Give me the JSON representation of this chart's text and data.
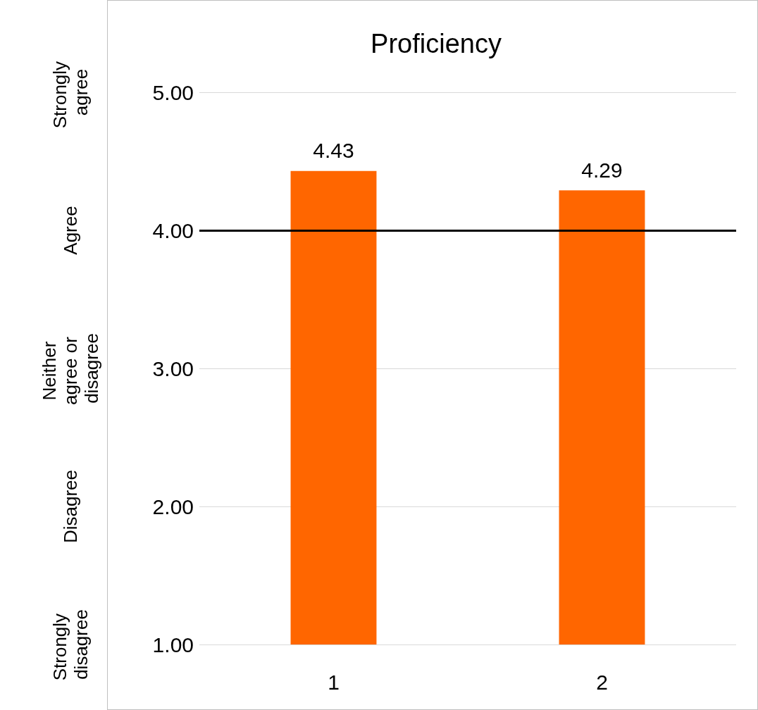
{
  "chart_data": {
    "type": "bar",
    "title": "Proficiency",
    "categories": [
      "1",
      "2"
    ],
    "values": [
      4.43,
      4.29
    ],
    "color": "#ff6600",
    "data_labels": true,
    "ylim": [
      1,
      5
    ],
    "yticks": [
      {
        "value": 1,
        "label": "1.00"
      },
      {
        "value": 2,
        "label": "2.00"
      },
      {
        "value": 3,
        "label": "3.00"
      },
      {
        "value": 4,
        "label": "4.00"
      },
      {
        "value": 5,
        "label": "5.00"
      }
    ],
    "annotations": [
      "Strongly agree",
      "Agree",
      "Neither agree or disagree",
      "Disagree",
      "Strongly disagree"
    ],
    "ref_lines": [
      {
        "axis": "y",
        "value": 4,
        "color": "#000000"
      }
    ],
    "grid": "y"
  }
}
